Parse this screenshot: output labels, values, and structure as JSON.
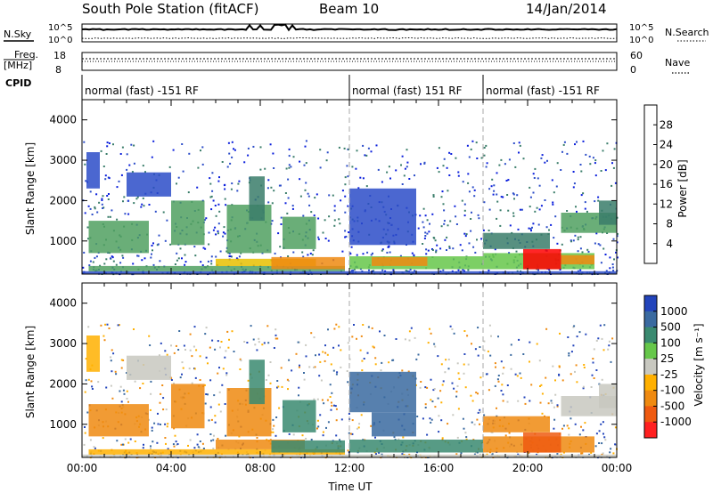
{
  "header": {
    "station": "South Pole Station (fitACF)",
    "beam": "Beam 10",
    "date": "14/Jan/2014"
  },
  "noise_panel": {
    "left_label": "N.Sky",
    "right_label": "N.Search",
    "ticks": [
      "10^5",
      "10^0"
    ]
  },
  "freq_panel": {
    "left_label_1": "Freq.",
    "left_label_2": "[MHz]",
    "left_ticks": [
      "18",
      "8"
    ],
    "right_ticks": [
      "60",
      "0"
    ],
    "right_label": "Nave"
  },
  "cpid_panel": {
    "label": "CPID",
    "segments": [
      {
        "start_hour": 0,
        "end_hour": 12,
        "text": "normal (fast) -151 RF"
      },
      {
        "start_hour": 12,
        "end_hour": 18,
        "text": "normal (fast) 151 RF"
      },
      {
        "start_hour": 18,
        "end_hour": 24,
        "text": "normal (fast) -151 RF"
      }
    ]
  },
  "colors": {
    "power": [
      "#0a1edc",
      "#2b4cc8",
      "#3a7d6a",
      "#50a060",
      "#66c74a",
      "#e8c000",
      "#ef8a10",
      "#ef5a10",
      "#ff0000"
    ],
    "velocity": [
      "#2244bb",
      "#3a6aa0",
      "#3a8a70",
      "#66c74a",
      "#c8c8c0",
      "#ffb000",
      "#ef8a10",
      "#ef5a10",
      "#ff2020"
    ]
  },
  "chart_data": [
    {
      "type": "heatmap",
      "name": "Power",
      "xlabel": "",
      "ylabel": "Slant Range [km]",
      "xlim": [
        0,
        24
      ],
      "ylim": [
        180,
        4500
      ],
      "yticks": [
        "1000",
        "2000",
        "3000",
        "4000"
      ],
      "colorbar_label": "Power [dB]",
      "colorbar_ticks": [
        "4",
        "8",
        "12",
        "16",
        "20",
        "24",
        "28"
      ],
      "colorbar_range": [
        0,
        32
      ],
      "regions": [
        {
          "x0": 0.0,
          "x1": 24.0,
          "y0": 180,
          "y1": 250,
          "level": 1
        },
        {
          "x0": 0.3,
          "x1": 11.8,
          "y0": 250,
          "y1": 380,
          "level": 3
        },
        {
          "x0": 6.0,
          "x1": 10.5,
          "y0": 380,
          "y1": 560,
          "level": 5
        },
        {
          "x0": 8.5,
          "x1": 11.8,
          "y0": 300,
          "y1": 600,
          "level": 6
        },
        {
          "x0": 12.0,
          "x1": 18.0,
          "y0": 300,
          "y1": 620,
          "level": 4
        },
        {
          "x0": 13.0,
          "x1": 15.5,
          "y0": 380,
          "y1": 600,
          "level": 6
        },
        {
          "x0": 18.0,
          "x1": 23.0,
          "y0": 300,
          "y1": 700,
          "level": 4
        },
        {
          "x0": 19.8,
          "x1": 21.5,
          "y0": 300,
          "y1": 800,
          "level": 8
        },
        {
          "x0": 21.5,
          "x1": 23.0,
          "y0": 420,
          "y1": 650,
          "level": 6
        },
        {
          "x0": 0.3,
          "x1": 3.0,
          "y0": 700,
          "y1": 1500,
          "level": 3
        },
        {
          "x0": 4.0,
          "x1": 5.5,
          "y0": 900,
          "y1": 2000,
          "level": 3
        },
        {
          "x0": 6.5,
          "x1": 8.5,
          "y0": 700,
          "y1": 1900,
          "level": 3
        },
        {
          "x0": 7.5,
          "x1": 8.2,
          "y0": 1500,
          "y1": 2600,
          "level": 2
        },
        {
          "x0": 9.0,
          "x1": 10.5,
          "y0": 800,
          "y1": 1600,
          "level": 3
        },
        {
          "x0": 2.0,
          "x1": 4.0,
          "y0": 2100,
          "y1": 2700,
          "level": 1
        },
        {
          "x0": 0.2,
          "x1": 0.8,
          "y0": 2300,
          "y1": 3200,
          "level": 1
        },
        {
          "x0": 12.0,
          "x1": 15.0,
          "y0": 900,
          "y1": 2300,
          "level": 1
        },
        {
          "x0": 18.0,
          "x1": 21.0,
          "y0": 800,
          "y1": 1200,
          "level": 2
        },
        {
          "x0": 21.5,
          "x1": 24.0,
          "y0": 1200,
          "y1": 1700,
          "level": 3
        },
        {
          "x0": 23.2,
          "x1": 24.0,
          "y0": 1400,
          "y1": 2000,
          "level": 2
        }
      ]
    },
    {
      "type": "heatmap",
      "name": "Velocity",
      "xlabel": "Time UT",
      "ylabel": "Slant Range [km]",
      "xlim": [
        0,
        24
      ],
      "ylim": [
        180,
        4500
      ],
      "xticks": [
        "00:00",
        "04:00",
        "08:00",
        "12:00",
        "16:00",
        "20:00",
        "00:00"
      ],
      "yticks": [
        "1000",
        "2000",
        "3000",
        "4000"
      ],
      "colorbar_label": "Velocity [m s⁻¹]",
      "colorbar_ticks": [
        "1000",
        "500",
        "100",
        "25",
        "-25",
        "-100",
        "-500",
        "-1000"
      ],
      "regions": [
        {
          "x0": 0.0,
          "x1": 24.0,
          "y0": 180,
          "y1": 250,
          "level": 4
        },
        {
          "x0": 0.3,
          "x1": 11.8,
          "y0": 250,
          "y1": 380,
          "level": 5
        },
        {
          "x0": 6.0,
          "x1": 10.0,
          "y0": 380,
          "y1": 620,
          "level": 6
        },
        {
          "x0": 8.5,
          "x1": 11.8,
          "y0": 300,
          "y1": 600,
          "level": 2
        },
        {
          "x0": 12.0,
          "x1": 18.0,
          "y0": 300,
          "y1": 620,
          "level": 2
        },
        {
          "x0": 13.0,
          "x1": 15.0,
          "y0": 700,
          "y1": 1300,
          "level": 1
        },
        {
          "x0": 18.0,
          "x1": 23.0,
          "y0": 300,
          "y1": 700,
          "level": 6
        },
        {
          "x0": 19.8,
          "x1": 21.5,
          "y0": 300,
          "y1": 800,
          "level": 7
        },
        {
          "x0": 0.3,
          "x1": 3.0,
          "y0": 700,
          "y1": 1500,
          "level": 6
        },
        {
          "x0": 4.0,
          "x1": 5.5,
          "y0": 900,
          "y1": 2000,
          "level": 6
        },
        {
          "x0": 6.5,
          "x1": 8.5,
          "y0": 700,
          "y1": 1900,
          "level": 6
        },
        {
          "x0": 7.5,
          "x1": 8.2,
          "y0": 1500,
          "y1": 2600,
          "level": 2
        },
        {
          "x0": 9.0,
          "x1": 10.5,
          "y0": 800,
          "y1": 1600,
          "level": 2
        },
        {
          "x0": 2.0,
          "x1": 4.0,
          "y0": 2100,
          "y1": 2700,
          "level": 4
        },
        {
          "x0": 0.2,
          "x1": 0.8,
          "y0": 2300,
          "y1": 3200,
          "level": 5
        },
        {
          "x0": 12.0,
          "x1": 15.0,
          "y0": 1300,
          "y1": 2300,
          "level": 1
        },
        {
          "x0": 18.0,
          "x1": 21.0,
          "y0": 800,
          "y1": 1200,
          "level": 6
        },
        {
          "x0": 21.5,
          "x1": 24.0,
          "y0": 1200,
          "y1": 1700,
          "level": 4
        },
        {
          "x0": 23.2,
          "x1": 24.0,
          "y0": 1400,
          "y1": 2000,
          "level": 4
        }
      ]
    }
  ]
}
